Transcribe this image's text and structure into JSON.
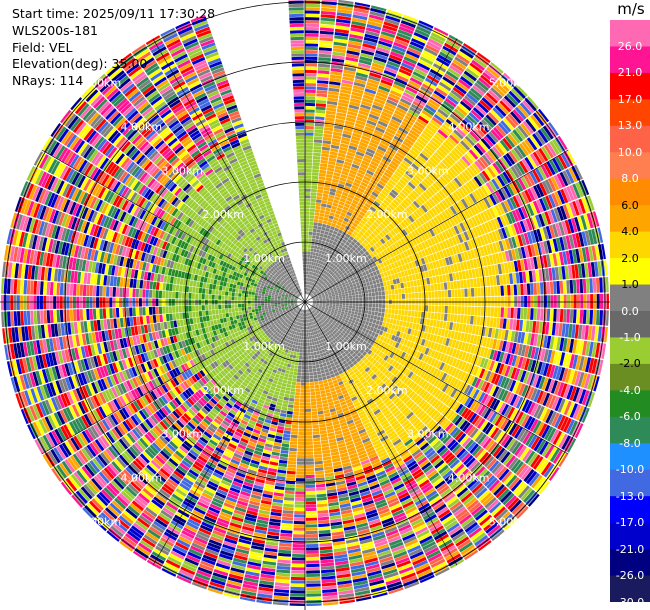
{
  "info": {
    "start_time": "Start time: 2025/09/11 17:30:28",
    "instrument": "WLS200s-181",
    "field": "Field: VEL",
    "elevation": "Elevation(deg): 35.00",
    "nrays": "NRays: 114"
  },
  "chart_data": {
    "type": "heatmap",
    "projection": "polar PPI",
    "field": "VEL",
    "units": "m/s",
    "elevation_deg": 35.0,
    "n_rays": 114,
    "range_ring_labels": [
      "1.00km",
      "2.00km",
      "3.00km",
      "4.00km",
      "5.00km"
    ],
    "range_rings_km": [
      1,
      2,
      3,
      4,
      5
    ],
    "missing_sector_deg": [
      340,
      358
    ],
    "colorbar": {
      "unit_label": "m/s",
      "boundaries": [
        -30.0,
        -26.0,
        -21.0,
        -17.0,
        -13.0,
        -10.0,
        -8.0,
        -6.0,
        -4.0,
        -2.0,
        -1.0,
        0.0,
        1.0,
        2.0,
        4.0,
        6.0,
        8.0,
        10.0,
        13.0,
        17.0,
        21.0,
        26.0
      ],
      "tick_labels": [
        "-30.0",
        "-26.0",
        "-21.0",
        "-17.0",
        "-13.0",
        "-10.0",
        "-8.0",
        "-6.0",
        "-4.0",
        "-2.0",
        "-1.0",
        "0.0",
        "1.0",
        "2.0",
        "4.0",
        "6.0",
        "8.0",
        "10.0",
        "13.0",
        "17.0",
        "21.0",
        "26.0"
      ],
      "colors": [
        "#1a1a5e",
        "#000080",
        "#0000cd",
        "#0000ff",
        "#4169e1",
        "#1e90ff",
        "#2e8b57",
        "#228b22",
        "#6b8e23",
        "#9acd32",
        "#696969",
        "#808080",
        "#ffff00",
        "#ffd700",
        "#ffa500",
        "#ff8c00",
        "#ff7f50",
        "#ff6347",
        "#ff4500",
        "#ff0000",
        "#ff1493",
        "#ff69b4"
      ],
      "colors_note": "",
      "max_color": "#ff69b4"
    },
    "pattern": {
      "inner_receding_color": "#9acd32",
      "inner_approaching_color": "#ffd700",
      "approaching_sector_center_deg": 95,
      "noise_colors": [
        "#ff1493",
        "#ff69b4",
        "#ff0000",
        "#0000cd",
        "#000080",
        "#ffff00",
        "#4169e1",
        "#808080",
        "#ff6347",
        "#2e8b57",
        "#ffa500",
        "#9acd32"
      ]
    }
  }
}
